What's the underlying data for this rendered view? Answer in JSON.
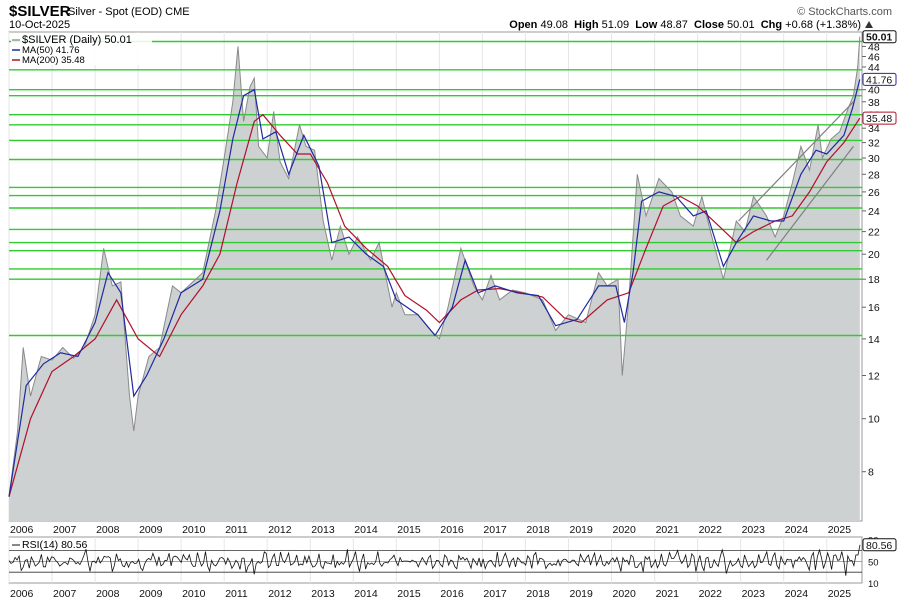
{
  "header": {
    "symbol": "$SILVER",
    "description": "Silver - Spot (EOD) CME",
    "date": "10-Oct-2025",
    "brand": "© StockCharts.com",
    "open_label": "Open",
    "open": "49.08",
    "high_label": "High",
    "high": "51.09",
    "low_label": "Low",
    "low": "48.87",
    "close_label": "Close",
    "close": "50.01",
    "chg_label": "Chg",
    "chg": "+0.68 (+1.38%)"
  },
  "legend": {
    "price": "$SILVER (Daily) 50.01",
    "ma50": "MA(50) 41.76",
    "ma200": "MA(200) 35.48"
  },
  "rsi_legend": "RSI(14) 80.56",
  "colors": {
    "price_area": "#cdd1d1",
    "price_line": "#8a8a8a",
    "ma50": "#1f2aa0",
    "ma200": "#b0102c",
    "support_lines": "#2ecc2e",
    "trend_lines": "#808080"
  },
  "chart_data": {
    "type": "area",
    "title": "$SILVER (Daily)",
    "ylim": [
      6.5,
      51
    ],
    "y_scale": "log",
    "price_axis_ticks": [
      8,
      10,
      12,
      14,
      16,
      18,
      20,
      22,
      24,
      26,
      28,
      30,
      32,
      34,
      36,
      38,
      40,
      44,
      46,
      48
    ],
    "x_ticks": [
      "2006",
      "2007",
      "2008",
      "2009",
      "2010",
      "2011",
      "2012",
      "2013",
      "2014",
      "2015",
      "2016",
      "2017",
      "2018",
      "2019",
      "2020",
      "2021",
      "2022",
      "2023",
      "2024",
      "2025"
    ],
    "value_labels": [
      {
        "value": 50.01,
        "text": "50.01",
        "series": "price"
      },
      {
        "value": 41.76,
        "text": "41.76",
        "series": "ma50"
      },
      {
        "value": 35.48,
        "text": "35.48",
        "series": "ma200"
      }
    ],
    "series": [
      {
        "name": "$SILVER (Daily)",
        "points": [
          [
            2006.0,
            7.2
          ],
          [
            2006.2,
            9.5
          ],
          [
            2006.33,
            13.5
          ],
          [
            2006.5,
            11.0
          ],
          [
            2006.75,
            13.0
          ],
          [
            2007.0,
            12.8
          ],
          [
            2007.25,
            13.5
          ],
          [
            2007.5,
            12.9
          ],
          [
            2007.75,
            13.5
          ],
          [
            2008.0,
            15.5
          ],
          [
            2008.2,
            20.5
          ],
          [
            2008.4,
            17.5
          ],
          [
            2008.6,
            17.8
          ],
          [
            2008.8,
            11.0
          ],
          [
            2008.9,
            9.5
          ],
          [
            2009.0,
            11.0
          ],
          [
            2009.25,
            13.0
          ],
          [
            2009.5,
            13.5
          ],
          [
            2009.8,
            17.5
          ],
          [
            2010.0,
            17.0
          ],
          [
            2010.5,
            18.5
          ],
          [
            2010.8,
            24.0
          ],
          [
            2011.0,
            30.0
          ],
          [
            2011.2,
            38.0
          ],
          [
            2011.32,
            48.0
          ],
          [
            2011.45,
            35.0
          ],
          [
            2011.6,
            40.5
          ],
          [
            2011.7,
            42.0
          ],
          [
            2011.8,
            31.5
          ],
          [
            2012.0,
            30.0
          ],
          [
            2012.15,
            36.5
          ],
          [
            2012.3,
            29.5
          ],
          [
            2012.5,
            27.5
          ],
          [
            2012.75,
            34.5
          ],
          [
            2012.9,
            31.5
          ],
          [
            2013.1,
            31.0
          ],
          [
            2013.3,
            23.0
          ],
          [
            2013.5,
            19.5
          ],
          [
            2013.7,
            22.5
          ],
          [
            2013.9,
            20.0
          ],
          [
            2014.1,
            21.5
          ],
          [
            2014.4,
            19.5
          ],
          [
            2014.6,
            21.0
          ],
          [
            2014.9,
            16.0
          ],
          [
            2015.0,
            17.0
          ],
          [
            2015.2,
            15.5
          ],
          [
            2015.5,
            15.5
          ],
          [
            2015.8,
            14.5
          ],
          [
            2016.0,
            14.0
          ],
          [
            2016.2,
            16.0
          ],
          [
            2016.5,
            20.5
          ],
          [
            2016.8,
            17.5
          ],
          [
            2017.0,
            16.5
          ],
          [
            2017.2,
            18.3
          ],
          [
            2017.4,
            16.5
          ],
          [
            2017.7,
            17.2
          ],
          [
            2018.0,
            17.0
          ],
          [
            2018.4,
            16.5
          ],
          [
            2018.7,
            14.5
          ],
          [
            2019.0,
            15.5
          ],
          [
            2019.4,
            15.0
          ],
          [
            2019.7,
            18.5
          ],
          [
            2019.9,
            17.5
          ],
          [
            2020.15,
            18.0
          ],
          [
            2020.25,
            12.0
          ],
          [
            2020.4,
            16.5
          ],
          [
            2020.6,
            28.0
          ],
          [
            2020.8,
            23.5
          ],
          [
            2021.1,
            27.5
          ],
          [
            2021.4,
            26.0
          ],
          [
            2021.6,
            23.5
          ],
          [
            2021.9,
            22.5
          ],
          [
            2022.1,
            25.5
          ],
          [
            2022.3,
            22.0
          ],
          [
            2022.6,
            18.0
          ],
          [
            2022.9,
            23.0
          ],
          [
            2023.1,
            22.0
          ],
          [
            2023.3,
            25.5
          ],
          [
            2023.6,
            23.5
          ],
          [
            2023.8,
            21.5
          ],
          [
            2024.0,
            23.5
          ],
          [
            2024.2,
            27.0
          ],
          [
            2024.4,
            31.5
          ],
          [
            2024.6,
            28.5
          ],
          [
            2024.8,
            34.5
          ],
          [
            2024.9,
            30.0
          ],
          [
            2025.1,
            32.5
          ],
          [
            2025.3,
            33.5
          ],
          [
            2025.5,
            37.0
          ],
          [
            2025.62,
            39.0
          ],
          [
            2025.72,
            44.0
          ],
          [
            2025.77,
            50.0
          ]
        ]
      },
      {
        "name": "MA(50)",
        "points": [
          [
            2006.0,
            7.2
          ],
          [
            2006.4,
            11.5
          ],
          [
            2006.8,
            12.6
          ],
          [
            2007.2,
            13.2
          ],
          [
            2007.6,
            13.0
          ],
          [
            2008.0,
            15.0
          ],
          [
            2008.3,
            18.5
          ],
          [
            2008.6,
            17.0
          ],
          [
            2008.9,
            11.0
          ],
          [
            2009.2,
            12.0
          ],
          [
            2009.6,
            14.0
          ],
          [
            2010.0,
            17.0
          ],
          [
            2010.5,
            18.0
          ],
          [
            2010.9,
            24.0
          ],
          [
            2011.2,
            32.5
          ],
          [
            2011.45,
            39.0
          ],
          [
            2011.7,
            40.0
          ],
          [
            2011.9,
            32.5
          ],
          [
            2012.2,
            33.5
          ],
          [
            2012.5,
            28.0
          ],
          [
            2012.85,
            33.0
          ],
          [
            2013.2,
            29.0
          ],
          [
            2013.5,
            21.0
          ],
          [
            2013.9,
            21.5
          ],
          [
            2014.3,
            20.0
          ],
          [
            2014.7,
            19.0
          ],
          [
            2015.0,
            16.5
          ],
          [
            2015.5,
            15.5
          ],
          [
            2015.9,
            14.2
          ],
          [
            2016.3,
            16.0
          ],
          [
            2016.6,
            19.5
          ],
          [
            2016.9,
            17.0
          ],
          [
            2017.3,
            17.5
          ],
          [
            2017.8,
            17.0
          ],
          [
            2018.3,
            16.8
          ],
          [
            2018.7,
            14.8
          ],
          [
            2019.2,
            15.2
          ],
          [
            2019.7,
            17.5
          ],
          [
            2020.1,
            17.5
          ],
          [
            2020.3,
            15.0
          ],
          [
            2020.5,
            18.5
          ],
          [
            2020.7,
            25.0
          ],
          [
            2021.1,
            26.0
          ],
          [
            2021.5,
            25.5
          ],
          [
            2021.9,
            23.5
          ],
          [
            2022.2,
            24.0
          ],
          [
            2022.6,
            19.0
          ],
          [
            2022.9,
            21.0
          ],
          [
            2023.3,
            23.5
          ],
          [
            2023.7,
            23.0
          ],
          [
            2024.0,
            23.0
          ],
          [
            2024.4,
            28.0
          ],
          [
            2024.75,
            31.0
          ],
          [
            2025.0,
            30.5
          ],
          [
            2025.4,
            33.0
          ],
          [
            2025.6,
            37.0
          ],
          [
            2025.77,
            41.76
          ]
        ]
      },
      {
        "name": "MA(200)",
        "points": [
          [
            2006.0,
            7.2
          ],
          [
            2006.5,
            10.0
          ],
          [
            2007.0,
            12.2
          ],
          [
            2007.5,
            13.0
          ],
          [
            2008.0,
            14.0
          ],
          [
            2008.5,
            16.5
          ],
          [
            2009.0,
            14.0
          ],
          [
            2009.5,
            13.0
          ],
          [
            2010.0,
            15.5
          ],
          [
            2010.5,
            17.5
          ],
          [
            2010.9,
            20.0
          ],
          [
            2011.3,
            27.0
          ],
          [
            2011.7,
            35.0
          ],
          [
            2011.9,
            36.0
          ],
          [
            2012.3,
            33.0
          ],
          [
            2012.7,
            30.5
          ],
          [
            2013.0,
            30.5
          ],
          [
            2013.4,
            27.0
          ],
          [
            2013.8,
            22.5
          ],
          [
            2014.3,
            20.5
          ],
          [
            2014.8,
            19.0
          ],
          [
            2015.2,
            16.8
          ],
          [
            2015.7,
            15.8
          ],
          [
            2016.0,
            15.0
          ],
          [
            2016.5,
            16.5
          ],
          [
            2016.9,
            17.2
          ],
          [
            2017.4,
            17.3
          ],
          [
            2017.9,
            17.0
          ],
          [
            2018.4,
            16.7
          ],
          [
            2018.9,
            15.3
          ],
          [
            2019.3,
            15.0
          ],
          [
            2019.9,
            16.5
          ],
          [
            2020.4,
            17.0
          ],
          [
            2020.8,
            20.5
          ],
          [
            2021.2,
            24.5
          ],
          [
            2021.6,
            25.5
          ],
          [
            2022.0,
            24.5
          ],
          [
            2022.5,
            22.5
          ],
          [
            2022.9,
            21.0
          ],
          [
            2023.3,
            22.0
          ],
          [
            2023.8,
            23.0
          ],
          [
            2024.2,
            23.5
          ],
          [
            2024.6,
            26.0
          ],
          [
            2025.0,
            29.5
          ],
          [
            2025.4,
            32.0
          ],
          [
            2025.77,
            35.48
          ]
        ]
      }
    ],
    "horizontal_levels": [
      49.0,
      43.5,
      40.0,
      39.0,
      36.0,
      34.5,
      32.3,
      29.8,
      26.5,
      25.6,
      24.3,
      22.2,
      21.0,
      20.3,
      18.8,
      18.0,
      14.2
    ],
    "trend_lines": [
      {
        "from": [
          2022.95,
          23.0
        ],
        "to": [
          2025.62,
          38.0
        ]
      },
      {
        "from": [
          2023.6,
          19.5
        ],
        "to": [
          2025.62,
          31.5
        ]
      }
    ],
    "rsi": {
      "name": "RSI(14)",
      "last": 80.56,
      "levels": [
        30,
        50,
        70
      ],
      "ylim": [
        10,
        95
      ],
      "tick_labels": [
        "90",
        "50",
        "10"
      ]
    }
  }
}
